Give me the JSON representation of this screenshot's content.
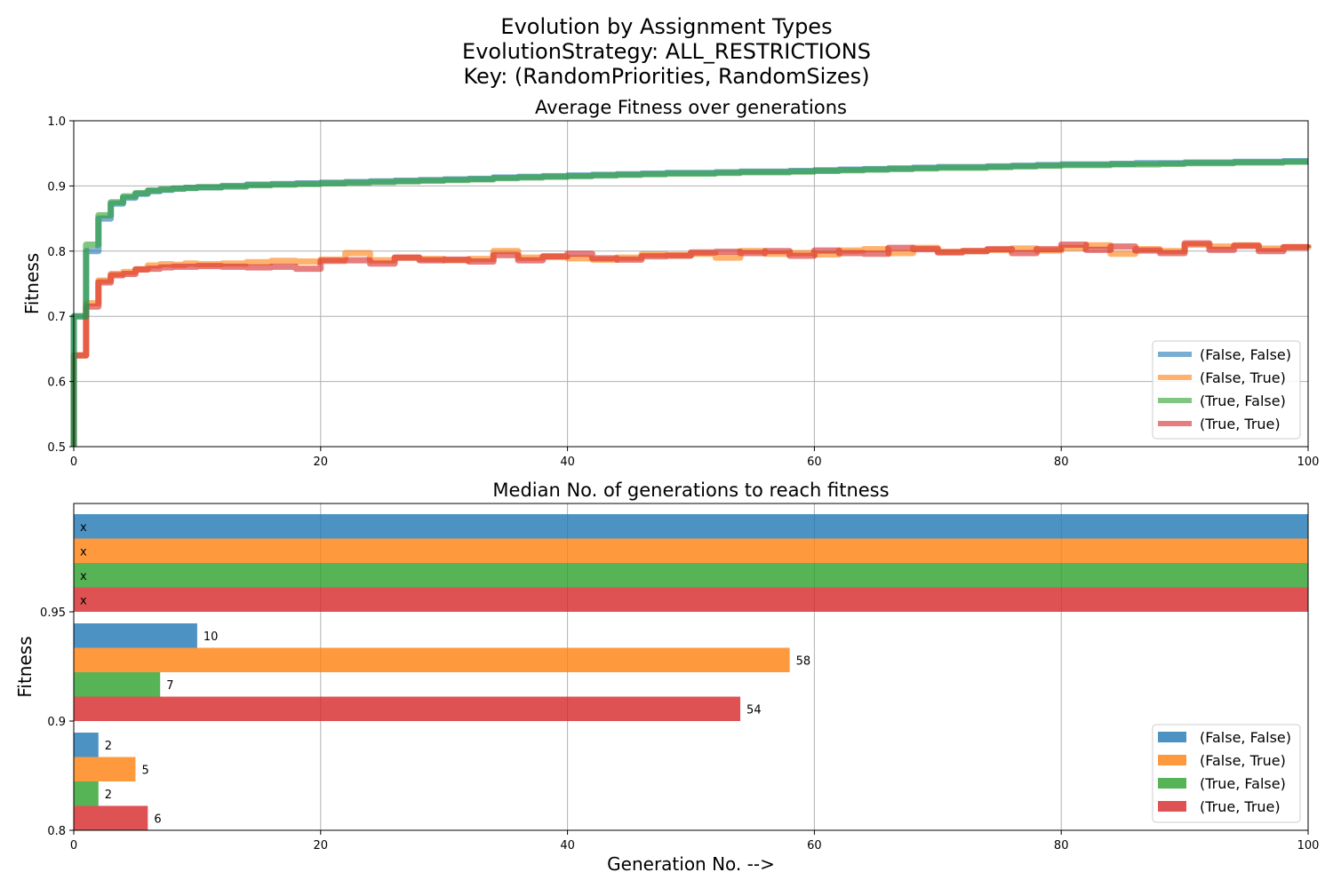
{
  "figure": {
    "title_lines": [
      "Evolution by Assignment Types",
      "EvolutionStrategy: ALL_RESTRICTIONS",
      "Key: (RandomPriorities, RandomSizes)"
    ]
  },
  "colors": {
    "series": [
      "#1f77b4",
      "#ff7f0e",
      "#2ca02c",
      "#d62728"
    ],
    "grid": "#b0b0b0"
  },
  "chart_data": [
    {
      "type": "line",
      "title": "Average Fitness over generations",
      "xlabel": "",
      "ylabel": "Fitness",
      "xlim": [
        0,
        100
      ],
      "ylim": [
        0.5,
        1.0
      ],
      "xticks": [
        0,
        20,
        40,
        60,
        80,
        100
      ],
      "yticks": [
        0.5,
        0.6,
        0.7,
        0.8,
        0.9,
        1.0
      ],
      "grid": true,
      "step": true,
      "legend_position": "lower-right",
      "x": [
        0,
        1,
        2,
        3,
        4,
        5,
        6,
        7,
        8,
        9,
        10,
        12,
        14,
        16,
        18,
        20,
        22,
        24,
        26,
        28,
        30,
        32,
        34,
        36,
        38,
        40,
        42,
        44,
        46,
        48,
        50,
        52,
        54,
        56,
        58,
        60,
        62,
        64,
        66,
        68,
        70,
        72,
        74,
        76,
        78,
        80,
        82,
        84,
        86,
        88,
        90,
        92,
        94,
        96,
        98,
        100
      ],
      "series": [
        {
          "name": "(False, False)",
          "values": [
            0.7,
            0.8,
            0.85,
            0.873,
            0.882,
            0.888,
            0.892,
            0.894,
            0.896,
            0.897,
            0.898,
            0.9,
            0.902,
            0.903,
            0.904,
            0.905,
            0.906,
            0.907,
            0.908,
            0.909,
            0.91,
            0.911,
            0.913,
            0.914,
            0.915,
            0.916,
            0.917,
            0.918,
            0.919,
            0.92,
            0.92,
            0.921,
            0.922,
            0.922,
            0.923,
            0.924,
            0.925,
            0.926,
            0.927,
            0.928,
            0.929,
            0.929,
            0.93,
            0.931,
            0.932,
            0.933,
            0.933,
            0.934,
            0.935,
            0.935,
            0.936,
            0.936,
            0.937,
            0.937,
            0.938,
            0.938
          ]
        },
        {
          "name": "(False, True)",
          "values": [
            0.64,
            0.72,
            0.755,
            0.765,
            0.768,
            0.772,
            0.778,
            0.78,
            0.779,
            0.781,
            0.78,
            0.781,
            0.783,
            0.785,
            0.784,
            0.787,
            0.797,
            0.786,
            0.79,
            0.788,
            0.786,
            0.788,
            0.8,
            0.79,
            0.791,
            0.789,
            0.787,
            0.79,
            0.795,
            0.794,
            0.796,
            0.79,
            0.8,
            0.796,
            0.797,
            0.795,
            0.801,
            0.803,
            0.797,
            0.805,
            0.799,
            0.8,
            0.802,
            0.804,
            0.801,
            0.805,
            0.809,
            0.796,
            0.803,
            0.8,
            0.81,
            0.807,
            0.809,
            0.804,
            0.806,
            0.81
          ]
        },
        {
          "name": "(True, False)",
          "values": [
            0.7,
            0.81,
            0.855,
            0.875,
            0.884,
            0.889,
            0.893,
            0.895,
            0.896,
            0.897,
            0.898,
            0.899,
            0.901,
            0.902,
            0.903,
            0.904,
            0.905,
            0.906,
            0.907,
            0.908,
            0.909,
            0.91,
            0.912,
            0.913,
            0.914,
            0.915,
            0.916,
            0.917,
            0.918,
            0.919,
            0.919,
            0.92,
            0.921,
            0.921,
            0.922,
            0.923,
            0.924,
            0.925,
            0.926,
            0.927,
            0.928,
            0.928,
            0.929,
            0.93,
            0.931,
            0.932,
            0.932,
            0.933,
            0.933,
            0.934,
            0.935,
            0.935,
            0.936,
            0.936,
            0.937,
            0.937
          ]
        },
        {
          "name": "(True, True)",
          "values": [
            0.64,
            0.715,
            0.752,
            0.763,
            0.765,
            0.772,
            0.773,
            0.775,
            0.776,
            0.776,
            0.777,
            0.776,
            0.775,
            0.776,
            0.773,
            0.785,
            0.786,
            0.781,
            0.79,
            0.786,
            0.787,
            0.784,
            0.794,
            0.786,
            0.792,
            0.796,
            0.789,
            0.787,
            0.792,
            0.793,
            0.798,
            0.799,
            0.797,
            0.8,
            0.793,
            0.801,
            0.797,
            0.796,
            0.805,
            0.803,
            0.798,
            0.8,
            0.803,
            0.797,
            0.803,
            0.81,
            0.802,
            0.807,
            0.801,
            0.797,
            0.812,
            0.802,
            0.808,
            0.8,
            0.806,
            0.805
          ]
        }
      ]
    },
    {
      "type": "bar",
      "orientation": "horizontal",
      "title": "Median No. of generations to reach fitness",
      "xlabel": "Generation No. -->",
      "ylabel": "Fitness",
      "xlim": [
        0,
        100
      ],
      "xticks": [
        0,
        20,
        40,
        60,
        80,
        100
      ],
      "yticks": [
        "0.8",
        "0.9",
        "0.95"
      ],
      "grid": true,
      "legend_position": "lower-right",
      "categories": [
        "0.8",
        "0.9",
        "0.95"
      ],
      "unreached_label": "x",
      "series": [
        {
          "name": "(False, False)",
          "values": [
            2,
            10,
            null
          ],
          "labels": [
            "2",
            "10",
            "x"
          ]
        },
        {
          "name": "(False, True)",
          "values": [
            5,
            58,
            null
          ],
          "labels": [
            "5",
            "58",
            "x"
          ]
        },
        {
          "name": "(True, False)",
          "values": [
            2,
            7,
            null
          ],
          "labels": [
            "2",
            "7",
            "x"
          ]
        },
        {
          "name": "(True, True)",
          "values": [
            6,
            54,
            null
          ],
          "labels": [
            "6",
            "54",
            "x"
          ]
        }
      ]
    }
  ]
}
